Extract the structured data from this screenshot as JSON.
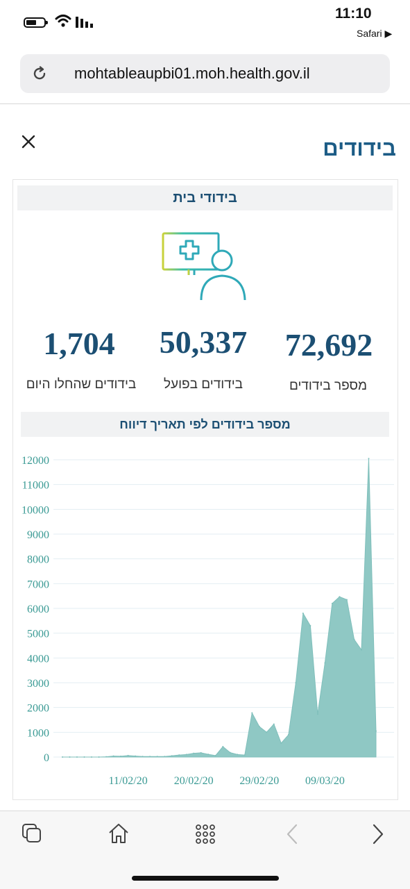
{
  "status_bar": {
    "time": "11:10",
    "back_app": "Safari ▶"
  },
  "browser": {
    "url": "mohtableaupbi01.moh.health.gov.il"
  },
  "page": {
    "title": "בידודים"
  },
  "card": {
    "title": "בידודי בית",
    "stats": [
      {
        "value": "1,704",
        "label": "בידודים שהחלו היום"
      },
      {
        "value": "50,337",
        "label": "בידודים בפועל"
      },
      {
        "value": "72,692",
        "label": "מספר בידודים"
      }
    ],
    "chart_title": "מספר בידודים לפי תאריך דיווח"
  },
  "colors": {
    "accent": "#1c4f73",
    "area_fill": "#8fc8c4",
    "axis_text": "#3a9a94"
  },
  "icons": [
    "reload-icon",
    "close-icon",
    "monitor-doctor-icon",
    "tabs-icon",
    "home-icon",
    "apps-grid-icon",
    "back-icon",
    "forward-icon"
  ],
  "chart_data": {
    "type": "area",
    "title": "מספר בידודים לפי תאריך דיווח",
    "xlabel": "",
    "ylabel": "",
    "ylim": [
      0,
      12000
    ],
    "yticks": [
      0,
      1000,
      2000,
      3000,
      4000,
      5000,
      6000,
      7000,
      8000,
      9000,
      10000,
      11000,
      12000
    ],
    "xtick_labels": [
      "11/02/20",
      "20/02/20",
      "29/02/20",
      "09/03/20"
    ],
    "grid": true,
    "x": [
      "02/02/20",
      "03/02/20",
      "04/02/20",
      "05/02/20",
      "06/02/20",
      "07/02/20",
      "08/02/20",
      "09/02/20",
      "10/02/20",
      "11/02/20",
      "12/02/20",
      "13/02/20",
      "14/02/20",
      "15/02/20",
      "16/02/20",
      "17/02/20",
      "18/02/20",
      "19/02/20",
      "20/02/20",
      "21/02/20",
      "22/02/20",
      "23/02/20",
      "24/02/20",
      "25/02/20",
      "26/02/20",
      "27/02/20",
      "28/02/20",
      "29/02/20",
      "01/03/20",
      "02/03/20",
      "03/03/20",
      "04/03/20",
      "05/03/20",
      "06/03/20",
      "07/03/20",
      "08/03/20",
      "09/03/20",
      "10/03/20",
      "11/03/20",
      "12/03/20",
      "13/03/20",
      "14/03/20",
      "15/03/20",
      "16/03/20"
    ],
    "values": [
      0,
      0,
      0,
      0,
      0,
      0,
      10,
      40,
      30,
      60,
      40,
      20,
      20,
      20,
      20,
      50,
      80,
      100,
      150,
      170,
      110,
      60,
      420,
      180,
      100,
      80,
      1780,
      1230,
      1000,
      1330,
      560,
      900,
      3000,
      5800,
      5300,
      1730,
      3800,
      6200,
      6470,
      6350,
      4750,
      4330,
      12050,
      1050
    ]
  }
}
